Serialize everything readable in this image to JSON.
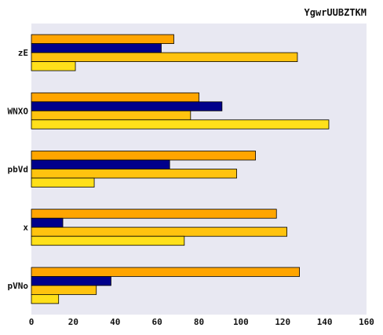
{
  "chart_data": {
    "type": "bar",
    "orientation": "horizontal",
    "title": "YgwrUUBZTKM",
    "xlabel": "",
    "ylabel": "",
    "xlim": [
      0,
      160
    ],
    "x_ticks": [
      0,
      20,
      40,
      60,
      80,
      100,
      120,
      140,
      160
    ],
    "grid": false,
    "background": "#e8e8f2",
    "categories": [
      "zE",
      "WNXO",
      "pbVd",
      "x",
      "pVNo"
    ],
    "series": [
      {
        "color": "#ffa500",
        "values": [
          68,
          80,
          107,
          117,
          128
        ]
      },
      {
        "color": "#00008b",
        "values": [
          62,
          91,
          66,
          15,
          38
        ]
      },
      {
        "color": "#ffc30f",
        "values": [
          127,
          76,
          98,
          122,
          31
        ]
      },
      {
        "color": "#ffe01a",
        "values": [
          21,
          142,
          30,
          73,
          13
        ]
      }
    ]
  }
}
